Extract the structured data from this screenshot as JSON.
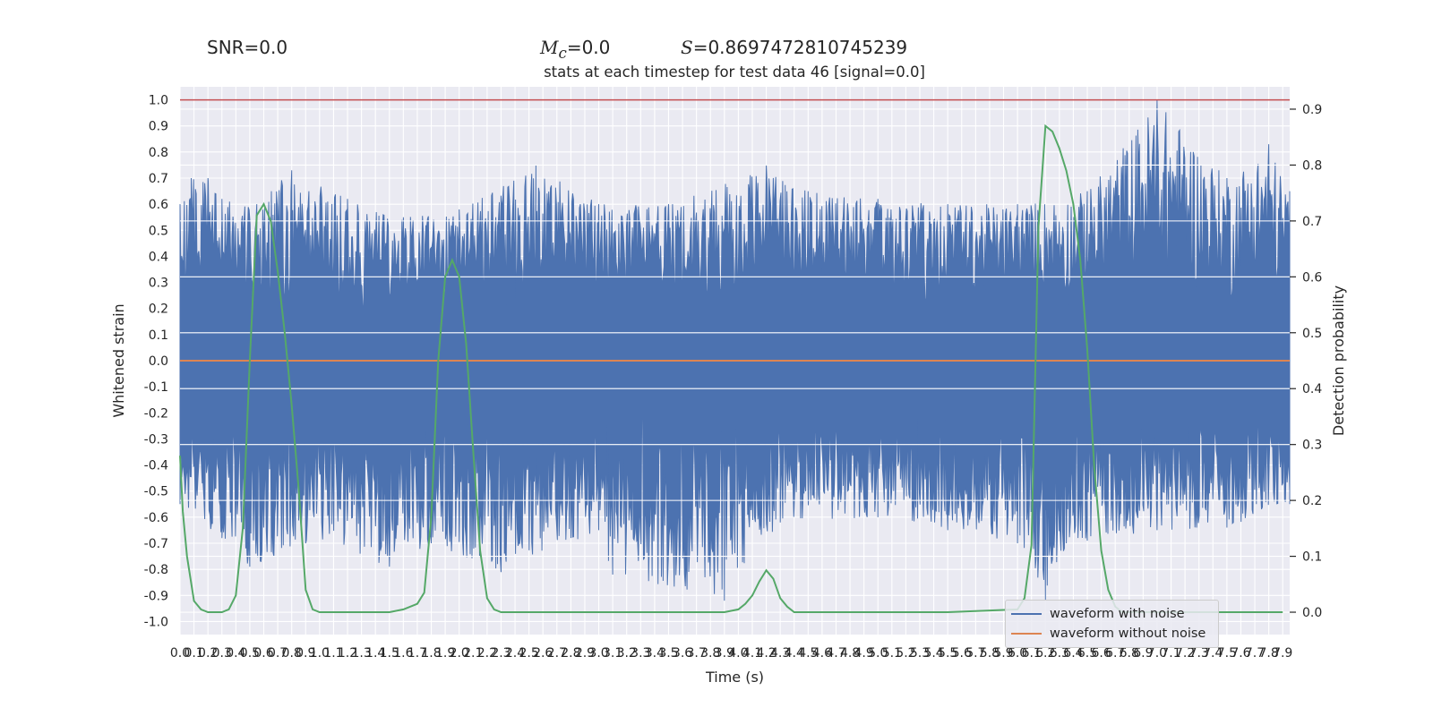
{
  "header": {
    "snr": "SNR=0.0",
    "mc_symbol": "M",
    "mc_subscript": "c",
    "mc_value": "=0.0",
    "s_symbol": "S",
    "s_value": "=0.8697472810745239"
  },
  "chart_data": {
    "type": "line",
    "title": "stats at each timestep for test data 46 [signal=0.0]",
    "xlabel": "Time (s)",
    "ylabel": "Whitened strain",
    "y2label": "Detection probability",
    "xlim": [
      0.0,
      7.95
    ],
    "ylim": [
      -1.05,
      1.05
    ],
    "y2lim": [
      -0.04,
      0.94
    ],
    "xticks": [
      0.0,
      0.1,
      0.2,
      0.3,
      0.4,
      0.5,
      0.6,
      0.7,
      0.8,
      0.9,
      1.0,
      1.1,
      1.2,
      1.3,
      1.4,
      1.5,
      1.6,
      1.7,
      1.8,
      1.9,
      2.0,
      2.1,
      2.2,
      2.3,
      2.4,
      2.5,
      2.6,
      2.7,
      2.8,
      2.9,
      3.0,
      3.1,
      3.2,
      3.3,
      3.4,
      3.5,
      3.6,
      3.7,
      3.8,
      3.9,
      4.0,
      4.1,
      4.2,
      4.3,
      4.4,
      4.5,
      4.6,
      4.7,
      4.8,
      4.9,
      5.0,
      5.1,
      5.2,
      5.3,
      5.4,
      5.5,
      5.6,
      5.7,
      5.8,
      5.9,
      6.0,
      6.1,
      6.2,
      6.3,
      6.4,
      6.5,
      6.6,
      6.7,
      6.8,
      6.9,
      7.0,
      7.1,
      7.2,
      7.3,
      7.4,
      7.5,
      7.6,
      7.7,
      7.8,
      7.9
    ],
    "yticks": [
      -1.0,
      -0.9,
      -0.8,
      -0.7,
      -0.6,
      -0.5,
      -0.4,
      -0.3,
      -0.2,
      -0.1,
      0.0,
      0.1,
      0.2,
      0.3,
      0.4,
      0.5,
      0.6,
      0.7,
      0.8,
      0.9,
      1.0
    ],
    "y2ticks": [
      0.0,
      0.1,
      0.2,
      0.3,
      0.4,
      0.5,
      0.6,
      0.7,
      0.8,
      0.9
    ],
    "grid": true,
    "legend_position": "lower-right",
    "series": [
      {
        "name": "waveform with noise",
        "axis": "left",
        "color": "#4c72b0",
        "style": "dense noise band",
        "envelope_upper": [
          [
            0.0,
            0.6
          ],
          [
            0.08,
            0.7
          ],
          [
            0.2,
            0.7
          ],
          [
            0.3,
            0.62
          ],
          [
            0.55,
            0.6
          ],
          [
            0.8,
            0.73
          ],
          [
            1.2,
            0.62
          ],
          [
            1.6,
            0.55
          ],
          [
            2.0,
            0.58
          ],
          [
            2.55,
            0.75
          ],
          [
            3.0,
            0.6
          ],
          [
            3.5,
            0.6
          ],
          [
            4.2,
            0.75
          ],
          [
            4.5,
            0.65
          ],
          [
            5.0,
            0.62
          ],
          [
            5.5,
            0.6
          ],
          [
            6.0,
            0.6
          ],
          [
            6.5,
            0.65
          ],
          [
            7.0,
            1.0
          ],
          [
            7.5,
            0.7
          ],
          [
            7.8,
            0.83
          ],
          [
            7.95,
            0.65
          ]
        ],
        "envelope_lower": [
          [
            0.0,
            -0.55
          ],
          [
            0.3,
            -0.68
          ],
          [
            0.5,
            -0.79
          ],
          [
            0.9,
            -0.7
          ],
          [
            1.5,
            -0.79
          ],
          [
            1.8,
            -0.7
          ],
          [
            2.3,
            -0.81
          ],
          [
            3.0,
            -0.65
          ],
          [
            3.1,
            -0.82
          ],
          [
            3.9,
            -0.92
          ],
          [
            4.3,
            -0.62
          ],
          [
            5.0,
            -0.6
          ],
          [
            5.5,
            -0.65
          ],
          [
            6.0,
            -0.7
          ],
          [
            6.2,
            -0.92
          ],
          [
            6.35,
            -0.7
          ],
          [
            6.5,
            -0.69
          ],
          [
            7.0,
            -0.65
          ],
          [
            7.5,
            -0.64
          ],
          [
            7.95,
            -0.55
          ]
        ]
      },
      {
        "name": "waveform without noise",
        "axis": "left",
        "color": "#dd8452",
        "x": [
          0.0,
          7.95
        ],
        "y": [
          0.0,
          0.0
        ]
      },
      {
        "name": "",
        "axis": "right",
        "color": "#55a868",
        "x": [
          0.0,
          0.02,
          0.05,
          0.1,
          0.15,
          0.2,
          0.3,
          0.35,
          0.4,
          0.45,
          0.5,
          0.55,
          0.6,
          0.65,
          0.7,
          0.75,
          0.8,
          0.85,
          0.9,
          0.95,
          1.0,
          1.05,
          1.1,
          1.15,
          1.2,
          1.3,
          1.4,
          1.5,
          1.6,
          1.7,
          1.75,
          1.8,
          1.85,
          1.9,
          1.95,
          2.0,
          2.05,
          2.1,
          2.15,
          2.2,
          2.25,
          2.3,
          2.35,
          2.4,
          2.45,
          2.5,
          2.55,
          2.6,
          3.0,
          3.5,
          3.9,
          4.0,
          4.05,
          4.1,
          4.15,
          4.2,
          4.25,
          4.3,
          4.35,
          4.4,
          4.45,
          4.5,
          4.55,
          4.6,
          5.0,
          5.5,
          6.0,
          6.05,
          6.1,
          6.15,
          6.2,
          6.25,
          6.3,
          6.35,
          6.4,
          6.45,
          6.5,
          6.55,
          6.6,
          6.65,
          6.7,
          6.75,
          6.8,
          6.85,
          6.9,
          7.0,
          7.5,
          7.9
        ],
        "y": [
          0.28,
          0.18,
          0.1,
          0.02,
          0.005,
          0.0,
          0.0,
          0.005,
          0.03,
          0.15,
          0.45,
          0.71,
          0.73,
          0.7,
          0.61,
          0.5,
          0.37,
          0.22,
          0.04,
          0.005,
          0.0,
          0.0,
          0.0,
          0.0,
          0.0,
          0.0,
          0.0,
          0.0,
          0.005,
          0.015,
          0.035,
          0.17,
          0.45,
          0.6,
          0.63,
          0.6,
          0.48,
          0.29,
          0.11,
          0.025,
          0.005,
          0.0,
          0.0,
          0.0,
          0.0,
          0.0,
          0.0,
          0.0,
          0.0,
          0.0,
          0.0,
          0.005,
          0.015,
          0.03,
          0.055,
          0.075,
          0.06,
          0.025,
          0.01,
          0.0,
          0.0,
          0.0,
          0.0,
          0.0,
          0.0,
          0.0,
          0.005,
          0.025,
          0.12,
          0.69,
          0.87,
          0.86,
          0.83,
          0.79,
          0.73,
          0.63,
          0.47,
          0.26,
          0.11,
          0.04,
          0.01,
          0.0,
          0.0,
          0.0,
          0.0,
          0.0,
          0.0,
          0.0
        ]
      }
    ],
    "reference_lines": [
      {
        "axis": "left",
        "y": 1.0,
        "color": "#c44e52"
      }
    ]
  }
}
